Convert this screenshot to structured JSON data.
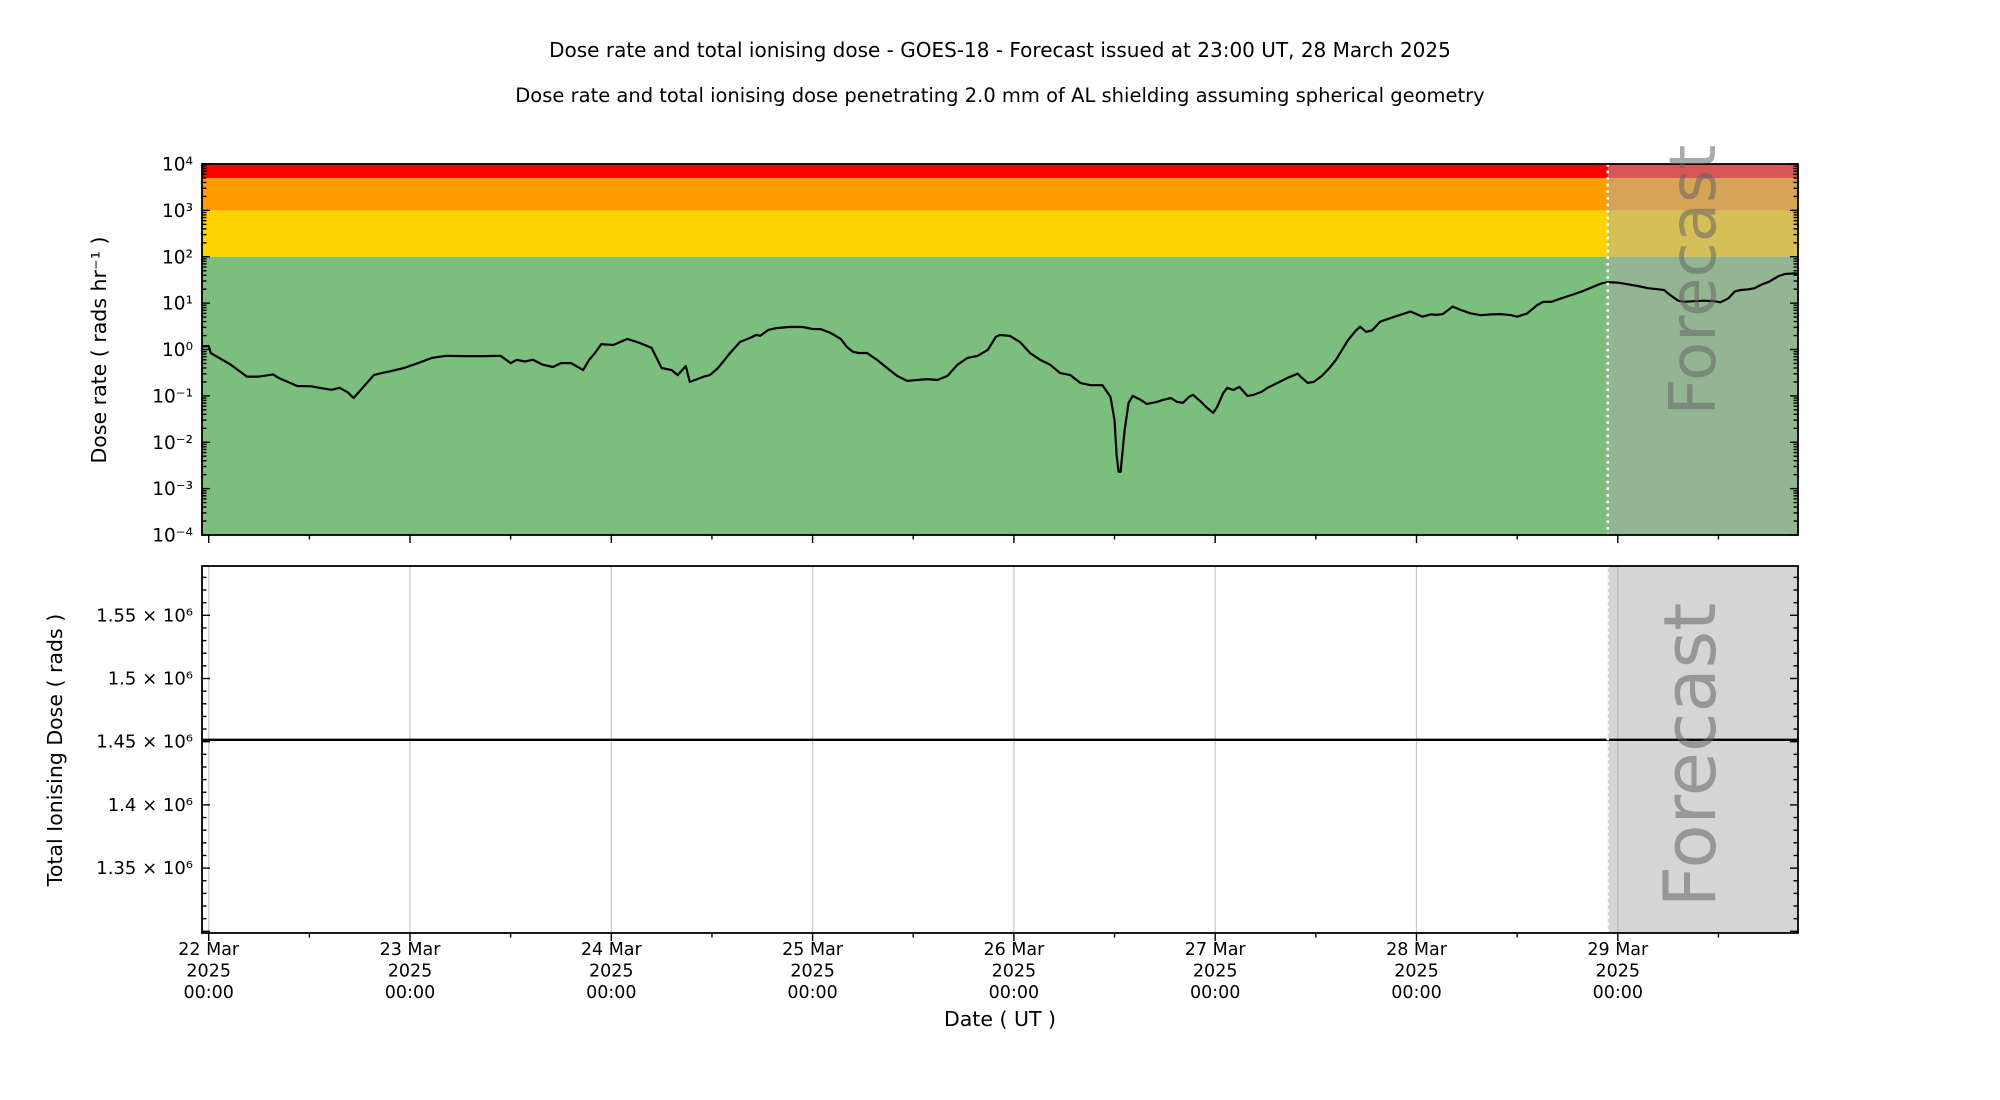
{
  "title": "Dose rate and total ionising dose - GOES-18 - Forecast issued at 23:00 UT, 28 March 2025",
  "subtitle": "Dose rate and total ionising dose penetrating 2.0 mm of AL shielding assuming spherical geometry",
  "xlabel": "Date ( UT )",
  "forecast_label": "Forecast",
  "forecast_start_day": 6.95,
  "x_axis": {
    "tick_days": [
      "22 Mar",
      "23 Mar",
      "24 Mar",
      "25 Mar",
      "26 Mar",
      "27 Mar",
      "28 Mar",
      "29 Mar"
    ],
    "tick_year": "2025",
    "tick_time": "00:00"
  },
  "chart_data": [
    {
      "type": "line",
      "panel": "dose-rate",
      "ylabel": "Dose rate ( rads hr⁻¹ )",
      "yscale": "log",
      "ylim": [
        0.0001,
        10000
      ],
      "ytick_labels": [
        "10⁴",
        "10³",
        "10²",
        "10¹",
        "10⁰",
        "10⁻¹",
        "10⁻²",
        "10⁻³",
        "10⁻⁴"
      ],
      "ytick_values": [
        10000,
        1000,
        100,
        10,
        1,
        0.1,
        0.01,
        0.001,
        0.0001
      ],
      "xlim_days": [
        -0.033,
        7.9
      ],
      "grid": false,
      "bands": [
        {
          "name": "green-safe",
          "color": "#7cbe7d",
          "range": [
            0.0001,
            100
          ]
        },
        {
          "name": "gold-warning",
          "color": "#ffd200",
          "range": [
            100,
            1000
          ]
        },
        {
          "name": "orange-alert",
          "color": "#ff9d00",
          "range": [
            1000,
            5000
          ]
        },
        {
          "name": "red-severe",
          "color": "#ff0000",
          "range": [
            5000,
            10000
          ]
        }
      ],
      "series": [
        {
          "name": "dose-rate",
          "color": "#000000",
          "points": [
            [
              -0.033,
              1.16
            ],
            [
              0,
              1.19
            ],
            [
              0.01,
              0.84
            ],
            [
              0.11,
              0.47
            ],
            [
              0.19,
              0.26
            ],
            [
              0.25,
              0.26
            ],
            [
              0.32,
              0.29
            ],
            [
              0.35,
              0.24
            ],
            [
              0.44,
              0.163
            ],
            [
              0.51,
              0.161
            ],
            [
              0.55,
              0.149
            ],
            [
              0.61,
              0.135
            ],
            [
              0.65,
              0.149
            ],
            [
              0.69,
              0.12
            ],
            [
              0.72,
              0.09
            ],
            [
              0.82,
              0.28
            ],
            [
              0.86,
              0.31
            ],
            [
              0.89,
              0.33
            ],
            [
              0.97,
              0.4
            ],
            [
              1.04,
              0.51
            ],
            [
              1.11,
              0.66
            ],
            [
              1.18,
              0.73
            ],
            [
              1.26,
              0.72
            ],
            [
              1.37,
              0.72
            ],
            [
              1.45,
              0.73
            ],
            [
              1.5,
              0.51
            ],
            [
              1.53,
              0.6
            ],
            [
              1.57,
              0.55
            ],
            [
              1.61,
              0.6
            ],
            [
              1.66,
              0.47
            ],
            [
              1.71,
              0.42
            ],
            [
              1.75,
              0.51
            ],
            [
              1.8,
              0.51
            ],
            [
              1.86,
              0.36
            ],
            [
              1.89,
              0.6
            ],
            [
              1.92,
              0.85
            ],
            [
              1.95,
              1.3
            ],
            [
              2.01,
              1.25
            ],
            [
              2.08,
              1.69
            ],
            [
              2.14,
              1.39
            ],
            [
              2.2,
              1.08
            ],
            [
              2.25,
              0.4
            ],
            [
              2.3,
              0.36
            ],
            [
              2.33,
              0.28
            ],
            [
              2.37,
              0.44
            ],
            [
              2.39,
              0.2
            ],
            [
              2.46,
              0.26
            ],
            [
              2.49,
              0.28
            ],
            [
              2.53,
              0.4
            ],
            [
              2.59,
              0.84
            ],
            [
              2.64,
              1.46
            ],
            [
              2.69,
              1.78
            ],
            [
              2.72,
              2.06
            ],
            [
              2.74,
              1.97
            ],
            [
              2.78,
              2.65
            ],
            [
              2.82,
              2.9
            ],
            [
              2.89,
              3.07
            ],
            [
              2.95,
              3.05
            ],
            [
              3.0,
              2.77
            ],
            [
              3.04,
              2.75
            ],
            [
              3.09,
              2.27
            ],
            [
              3.14,
              1.69
            ],
            [
              3.17,
              1.14
            ],
            [
              3.2,
              0.89
            ],
            [
              3.23,
              0.84
            ],
            [
              3.27,
              0.84
            ],
            [
              3.32,
              0.6
            ],
            [
              3.37,
              0.4
            ],
            [
              3.42,
              0.27
            ],
            [
              3.47,
              0.21
            ],
            [
              3.52,
              0.22
            ],
            [
              3.57,
              0.23
            ],
            [
              3.62,
              0.22
            ],
            [
              3.67,
              0.27
            ],
            [
              3.72,
              0.47
            ],
            [
              3.77,
              0.66
            ],
            [
              3.82,
              0.73
            ],
            [
              3.87,
              0.98
            ],
            [
              3.91,
              1.87
            ],
            [
              3.93,
              2.05
            ],
            [
              3.98,
              1.96
            ],
            [
              4.03,
              1.46
            ],
            [
              4.08,
              0.84
            ],
            [
              4.13,
              0.6
            ],
            [
              4.18,
              0.47
            ],
            [
              4.23,
              0.31
            ],
            [
              4.28,
              0.28
            ],
            [
              4.33,
              0.19
            ],
            [
              4.38,
              0.17
            ],
            [
              4.44,
              0.17
            ],
            [
              4.48,
              0.095
            ],
            [
              4.5,
              0.03
            ],
            [
              4.51,
              0.0053
            ],
            [
              4.52,
              0.0023
            ],
            [
              4.53,
              0.0023
            ],
            [
              4.55,
              0.018
            ],
            [
              4.57,
              0.071
            ],
            [
              4.59,
              0.1
            ],
            [
              4.63,
              0.082
            ],
            [
              4.66,
              0.067
            ],
            [
              4.71,
              0.074
            ],
            [
              4.74,
              0.082
            ],
            [
              4.78,
              0.09
            ],
            [
              4.81,
              0.074
            ],
            [
              4.84,
              0.071
            ],
            [
              4.87,
              0.095
            ],
            [
              4.89,
              0.105
            ],
            [
              4.93,
              0.074
            ],
            [
              4.96,
              0.055
            ],
            [
              4.99,
              0.043
            ],
            [
              5.01,
              0.058
            ],
            [
              5.04,
              0.116
            ],
            [
              5.06,
              0.149
            ],
            [
              5.09,
              0.134
            ],
            [
              5.12,
              0.156
            ],
            [
              5.16,
              0.1
            ],
            [
              5.19,
              0.105
            ],
            [
              5.23,
              0.122
            ],
            [
              5.26,
              0.149
            ],
            [
              5.31,
              0.19
            ],
            [
              5.36,
              0.245
            ],
            [
              5.41,
              0.3
            ],
            [
              5.43,
              0.245
            ],
            [
              5.46,
              0.19
            ],
            [
              5.49,
              0.2
            ],
            [
              5.53,
              0.27
            ],
            [
              5.57,
              0.41
            ],
            [
              5.6,
              0.6
            ],
            [
              5.63,
              0.98
            ],
            [
              5.66,
              1.6
            ],
            [
              5.7,
              2.6
            ],
            [
              5.72,
              3.1
            ],
            [
              5.75,
              2.4
            ],
            [
              5.78,
              2.6
            ],
            [
              5.82,
              4.0
            ],
            [
              5.86,
              4.6
            ],
            [
              5.92,
              5.6
            ],
            [
              5.97,
              6.6
            ],
            [
              6.0,
              5.8
            ],
            [
              6.03,
              5.1
            ],
            [
              6.07,
              5.7
            ],
            [
              6.1,
              5.6
            ],
            [
              6.13,
              5.8
            ],
            [
              6.18,
              8.4
            ],
            [
              6.22,
              7.1
            ],
            [
              6.27,
              6.0
            ],
            [
              6.32,
              5.5
            ],
            [
              6.37,
              5.7
            ],
            [
              6.42,
              5.8
            ],
            [
              6.47,
              5.5
            ],
            [
              6.5,
              5.1
            ],
            [
              6.55,
              6.0
            ],
            [
              6.6,
              9.1
            ],
            [
              6.63,
              10.7
            ],
            [
              6.67,
              10.7
            ],
            [
              6.72,
              12.7
            ],
            [
              6.77,
              15.0
            ],
            [
              6.82,
              17.7
            ],
            [
              6.86,
              21.0
            ],
            [
              6.92,
              26.8
            ],
            [
              6.95,
              28.2
            ],
            [
              7.0,
              27.7
            ],
            [
              7.05,
              25.5
            ],
            [
              7.1,
              23.4
            ],
            [
              7.15,
              21.0
            ],
            [
              7.2,
              19.9
            ],
            [
              7.23,
              19.2
            ],
            [
              7.26,
              15.0
            ],
            [
              7.3,
              11.3
            ],
            [
              7.33,
              10.7
            ],
            [
              7.38,
              11.0
            ],
            [
              7.43,
              11.3
            ],
            [
              7.48,
              11.0
            ],
            [
              7.51,
              10.4
            ],
            [
              7.55,
              12.7
            ],
            [
              7.58,
              17.7
            ],
            [
              7.61,
              19.2
            ],
            [
              7.65,
              19.9
            ],
            [
              7.68,
              21.0
            ],
            [
              7.71,
              24.6
            ],
            [
              7.75,
              28.9
            ],
            [
              7.8,
              38.5
            ],
            [
              7.83,
              42.5
            ],
            [
              7.88,
              44.0
            ],
            [
              7.9,
              42.5
            ]
          ]
        }
      ]
    },
    {
      "type": "line",
      "panel": "total-ionising-dose",
      "ylabel": "Total Ionising Dose ( rads )",
      "yscale": "linear",
      "ylim": [
        1299000,
        1589000
      ],
      "ytick_labels": [
        "1.55 × 10⁶",
        "1.5 × 10⁶",
        "1.45 × 10⁶",
        "1.4 × 10⁶",
        "1.35 × 10⁶"
      ],
      "ytick_values": [
        1550000,
        1500000,
        1450000,
        1400000,
        1350000
      ],
      "xlim_days": [
        -0.033,
        7.9
      ],
      "grid": true,
      "series": [
        {
          "name": "total-ionising-dose",
          "color": "#000000",
          "points": [
            [
              -0.033,
              1451500
            ],
            [
              7.9,
              1451500
            ]
          ]
        }
      ]
    }
  ],
  "colors": {
    "forecast_overlay": "rgba(172,172,172,0.5)",
    "gridline": "#c6c6c6",
    "divider": "#ffffff"
  }
}
